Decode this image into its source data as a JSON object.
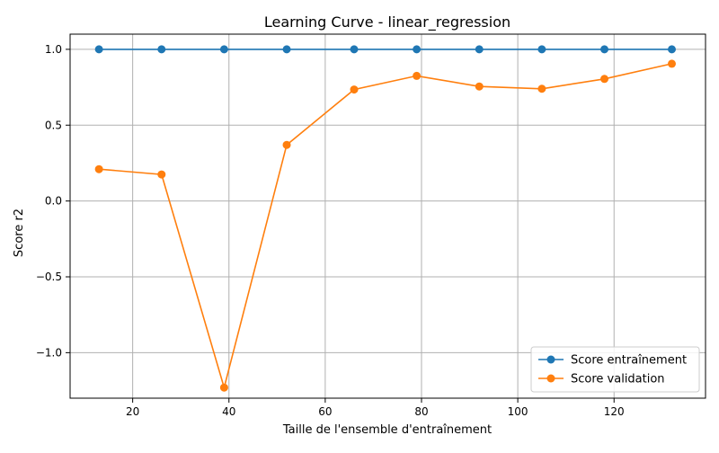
{
  "chart_data": {
    "type": "line",
    "title": "Learning Curve - linear_regression",
    "xlabel": "Taille de l'ensemble d'entraînement",
    "ylabel": "Score r2",
    "xlim": [
      7,
      139
    ],
    "ylim": [
      -1.3,
      1.1
    ],
    "xticks": [
      20,
      40,
      60,
      80,
      100,
      120
    ],
    "yticks": [
      -1.0,
      -0.5,
      0.0,
      0.5,
      1.0
    ],
    "xtick_labels": [
      "20",
      "40",
      "60",
      "80",
      "100",
      "120"
    ],
    "ytick_labels": [
      "−1.0",
      "−0.5",
      "0.0",
      "0.5",
      "1.0"
    ],
    "grid": true,
    "legend_position": "lower right",
    "x": [
      13,
      26,
      39,
      52,
      66,
      79,
      92,
      105,
      118,
      132
    ],
    "series": [
      {
        "name": "Score entraînement",
        "color": "#1f77b4",
        "marker": "circle",
        "values": [
          1.0,
          1.0,
          1.0,
          1.0,
          1.0,
          1.0,
          1.0,
          1.0,
          1.0,
          1.0
        ]
      },
      {
        "name": "Score validation",
        "color": "#ff7f0e",
        "marker": "circle",
        "values": [
          0.21,
          0.175,
          -1.23,
          0.37,
          0.735,
          0.825,
          0.755,
          0.74,
          0.805,
          0.905
        ]
      }
    ]
  }
}
